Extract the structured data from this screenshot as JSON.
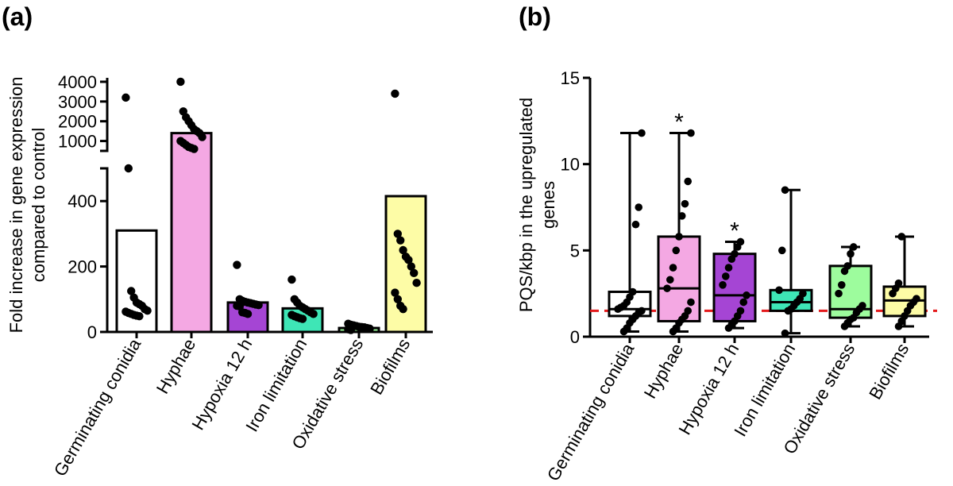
{
  "chart_data": [
    {
      "type": "bar",
      "panel_label": "(a)",
      "title": "",
      "xlabel": "",
      "ylabel_lines": [
        "Fold increase in gene expression",
        "compared to control"
      ],
      "categories": [
        "Germinating conidia",
        "Hyphae",
        "Hypoxia 12 h",
        "Iron limitation",
        "Oxidative stress",
        "Biofilms"
      ],
      "colors": [
        "#ffffff",
        "#f4a8e3",
        "#a545d4",
        "#3ee6b6",
        "#9dfc9d",
        "#fdfca6"
      ],
      "axis_segments": [
        {
          "range": [
            0,
            500
          ],
          "ticks": [
            {
              "value": 0,
              "label": "0"
            },
            {
              "value": 200,
              "label": "200"
            },
            {
              "value": 400,
              "label": "400"
            }
          ]
        },
        {
          "range": [
            500,
            4200
          ],
          "ticks": [
            {
              "value": 1000,
              "label": "1000"
            },
            {
              "value": 2000,
              "label": "2000"
            },
            {
              "value": 3000,
              "label": "3000"
            },
            {
              "value": 4000,
              "label": "4000"
            }
          ]
        }
      ],
      "values": [
        310,
        1400,
        90,
        72,
        12,
        415
      ],
      "points": [
        [
          3200,
          500,
          125,
          105,
          90,
          85,
          80,
          70,
          65,
          62,
          58,
          55,
          52,
          50,
          48
        ],
        [
          4000,
          2500,
          2200,
          2000,
          1800,
          1600,
          1500,
          1400,
          1200,
          1000,
          900,
          800,
          700,
          650,
          600
        ],
        [
          205,
          100,
          95,
          92,
          90,
          88,
          86,
          84,
          82,
          80,
          78,
          60,
          58,
          55
        ],
        [
          160,
          100,
          90,
          80,
          75,
          70,
          65,
          60,
          55,
          52,
          48,
          45,
          42,
          40
        ],
        [
          25,
          22,
          20,
          18,
          16,
          15,
          14,
          12,
          10,
          8,
          6
        ],
        [
          3400,
          300,
          280,
          250,
          230,
          220,
          200,
          180,
          150,
          120,
          100,
          80,
          70
        ]
      ]
    },
    {
      "type": "box",
      "panel_label": "(b)",
      "title": "",
      "xlabel": "",
      "ylabel_lines": [
        "PQS/kbp in the upregulated",
        "genes"
      ],
      "ylim": [
        0,
        15
      ],
      "yticks": [
        0,
        5,
        10,
        15
      ],
      "reference_line": 1.5,
      "categories": [
        "Germinating conidia",
        "Hyphae",
        "Hypoxia 12 h",
        "Iron limitation",
        "Oxidative stress",
        "Biofilms"
      ],
      "colors": [
        "#ffffff",
        "#f4a8e3",
        "#a545d4",
        "#3ee6b6",
        "#9dfc9d",
        "#fdfca6"
      ],
      "boxes": [
        {
          "min": 0.3,
          "q1": 1.2,
          "median": 1.6,
          "q3": 2.6,
          "max": 11.8,
          "significant": false
        },
        {
          "min": 0.3,
          "q1": 0.9,
          "median": 2.8,
          "q3": 5.8,
          "max": 11.8,
          "significant": true
        },
        {
          "min": 0.5,
          "q1": 0.9,
          "median": 2.4,
          "q3": 4.8,
          "max": 5.5,
          "significant": true
        },
        {
          "min": 0.2,
          "q1": 1.5,
          "median": 2.0,
          "q3": 2.7,
          "max": 8.5,
          "significant": false
        },
        {
          "min": 0.6,
          "q1": 1.1,
          "median": 1.6,
          "q3": 4.1,
          "max": 5.2,
          "significant": false
        },
        {
          "min": 0.6,
          "q1": 1.2,
          "median": 2.1,
          "q3": 2.9,
          "max": 5.8,
          "significant": false
        }
      ],
      "points": [
        [
          0.3,
          0.5,
          0.8,
          1.0,
          1.2,
          1.4,
          1.5,
          1.6,
          1.7,
          1.8,
          2.0,
          2.3,
          2.6,
          6.5,
          7.5,
          11.8
        ],
        [
          0.3,
          0.5,
          0.8,
          1.0,
          1.2,
          1.5,
          2.0,
          2.8,
          3.3,
          4.0,
          5.0,
          5.8,
          7.0,
          7.7,
          9.0,
          11.8
        ],
        [
          0.5,
          0.7,
          0.9,
          1.2,
          1.5,
          2.0,
          2.4,
          3.0,
          3.5,
          4.0,
          4.5,
          4.8,
          5.2,
          5.5
        ],
        [
          0.2,
          1.5,
          1.6,
          1.8,
          2.0,
          2.2,
          2.5,
          2.7,
          5.0,
          8.5
        ],
        [
          0.6,
          0.8,
          1.0,
          1.1,
          1.4,
          1.6,
          1.8,
          2.5,
          3.0,
          3.8,
          4.1,
          4.8,
          5.2
        ],
        [
          0.6,
          0.9,
          1.2,
          1.5,
          1.8,
          2.0,
          2.2,
          2.5,
          2.8,
          3.1,
          5.8
        ]
      ],
      "significance_marker": "*"
    }
  ]
}
